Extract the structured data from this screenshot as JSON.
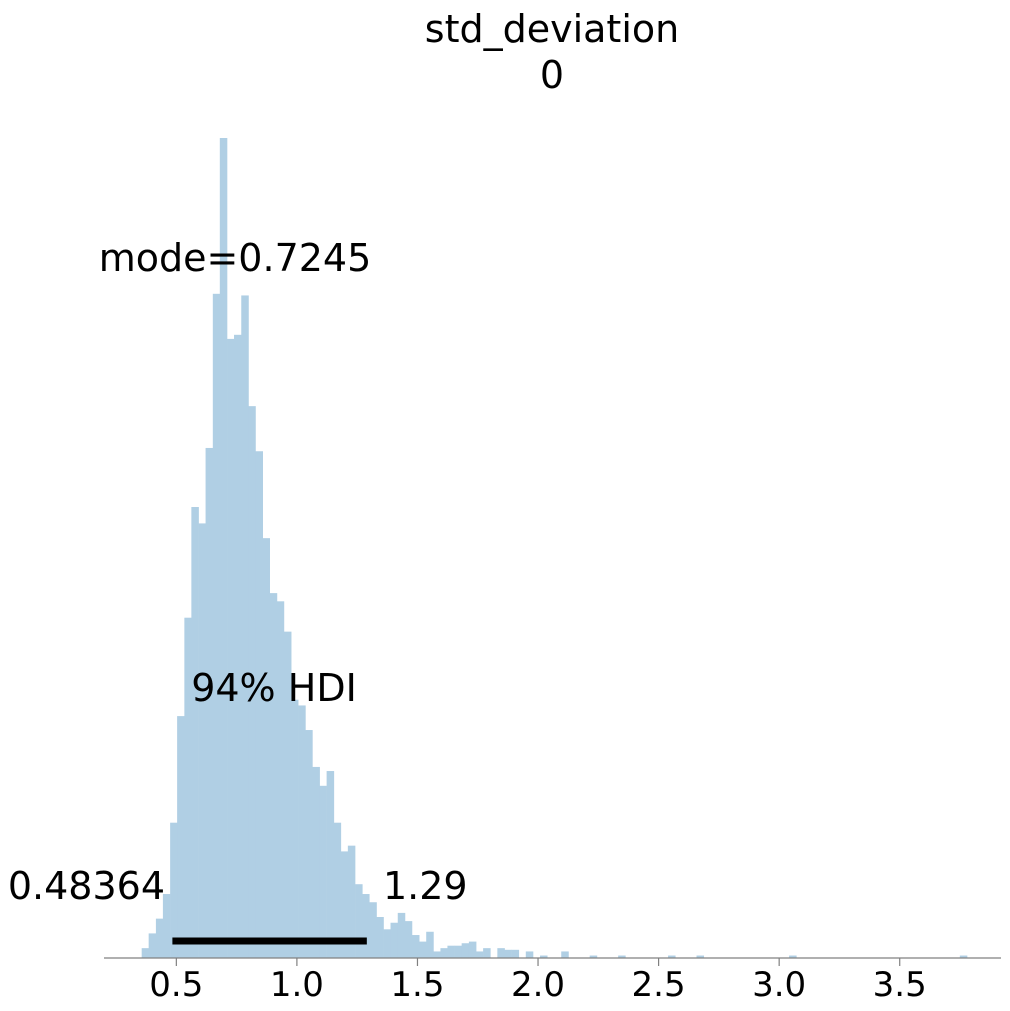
{
  "chart_data": {
    "type": "histogram",
    "title": "std_deviation",
    "subtitle": "0",
    "xlabel": "",
    "ylabel": "",
    "xlim": [
      0.2,
      3.92
    ],
    "xticks": [
      "0.5",
      "1.0",
      "1.5",
      "2.0",
      "2.5",
      "3.0",
      "3.5"
    ],
    "bin_width": 0.0295,
    "bins": [
      {
        "x": 0.371,
        "y": 12
      },
      {
        "x": 0.4,
        "y": 30
      },
      {
        "x": 0.43,
        "y": 48
      },
      {
        "x": 0.459,
        "y": 78
      },
      {
        "x": 0.489,
        "y": 165
      },
      {
        "x": 0.518,
        "y": 295
      },
      {
        "x": 0.548,
        "y": 415
      },
      {
        "x": 0.577,
        "y": 550
      },
      {
        "x": 0.607,
        "y": 530
      },
      {
        "x": 0.636,
        "y": 622
      },
      {
        "x": 0.666,
        "y": 810
      },
      {
        "x": 0.695,
        "y": 1000
      },
      {
        "x": 0.725,
        "y": 755
      },
      {
        "x": 0.754,
        "y": 760
      },
      {
        "x": 0.784,
        "y": 808
      },
      {
        "x": 0.813,
        "y": 673
      },
      {
        "x": 0.843,
        "y": 618
      },
      {
        "x": 0.872,
        "y": 512
      },
      {
        "x": 0.902,
        "y": 445
      },
      {
        "x": 0.931,
        "y": 435
      },
      {
        "x": 0.961,
        "y": 398
      },
      {
        "x": 0.99,
        "y": 315
      },
      {
        "x": 1.02,
        "y": 308
      },
      {
        "x": 1.049,
        "y": 278
      },
      {
        "x": 1.079,
        "y": 233
      },
      {
        "x": 1.108,
        "y": 210
      },
      {
        "x": 1.138,
        "y": 228
      },
      {
        "x": 1.167,
        "y": 165
      },
      {
        "x": 1.197,
        "y": 130
      },
      {
        "x": 1.226,
        "y": 137
      },
      {
        "x": 1.256,
        "y": 90
      },
      {
        "x": 1.285,
        "y": 78
      },
      {
        "x": 1.315,
        "y": 68
      },
      {
        "x": 1.344,
        "y": 50
      },
      {
        "x": 1.374,
        "y": 35
      },
      {
        "x": 1.403,
        "y": 43
      },
      {
        "x": 1.433,
        "y": 55
      },
      {
        "x": 1.462,
        "y": 45
      },
      {
        "x": 1.492,
        "y": 28
      },
      {
        "x": 1.521,
        "y": 20
      },
      {
        "x": 1.551,
        "y": 32
      },
      {
        "x": 1.58,
        "y": 8
      },
      {
        "x": 1.61,
        "y": 12
      },
      {
        "x": 1.639,
        "y": 15
      },
      {
        "x": 1.669,
        "y": 15
      },
      {
        "x": 1.698,
        "y": 18
      },
      {
        "x": 1.728,
        "y": 20
      },
      {
        "x": 1.757,
        "y": 8
      },
      {
        "x": 1.787,
        "y": 12
      },
      {
        "x": 1.846,
        "y": 12
      },
      {
        "x": 1.875,
        "y": 10
      },
      {
        "x": 1.905,
        "y": 10
      },
      {
        "x": 1.964,
        "y": 8
      },
      {
        "x": 2.023,
        "y": 3
      },
      {
        "x": 2.111,
        "y": 8
      },
      {
        "x": 2.229,
        "y": 3
      },
      {
        "x": 2.347,
        "y": 3
      },
      {
        "x": 2.554,
        "y": 3
      },
      {
        "x": 2.672,
        "y": 3
      },
      {
        "x": 3.056,
        "y": 3
      },
      {
        "x": 3.764,
        "y": 3
      }
    ],
    "mode_label": "mode=0.7245",
    "hdi_label": "94% HDI",
    "hdi_low": 0.48364,
    "hdi_high": 1.29,
    "hdi_low_label": "0.48364",
    "hdi_high_label": "1.29",
    "bar_color": "#b0cfe4",
    "hdi_color": "#000000",
    "axis_color": "#808080",
    "grid": false,
    "legend": "none"
  }
}
